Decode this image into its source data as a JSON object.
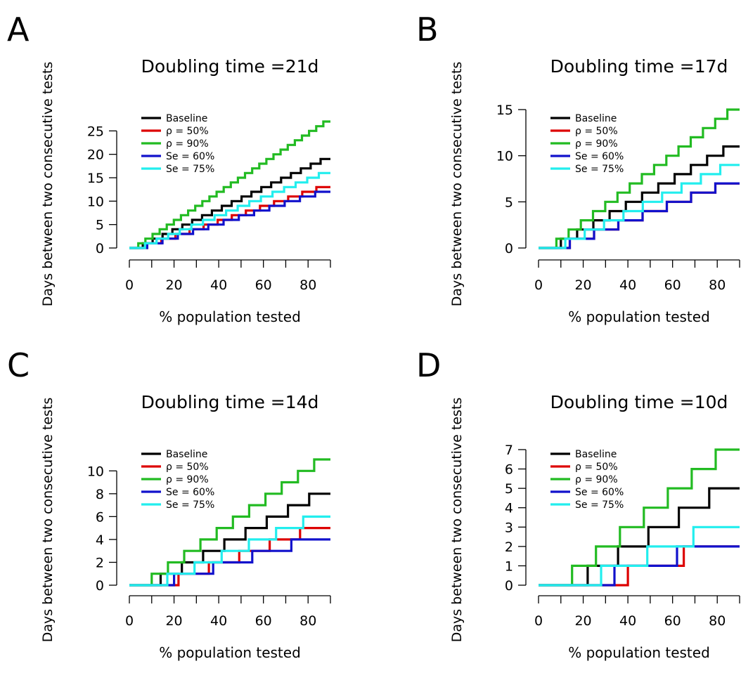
{
  "figure": {
    "xlabel": "% population tested",
    "ylabel": "Days between two consecutive tests"
  },
  "chart_data": [
    {
      "panel": "A",
      "type": "line",
      "title": "Doubling time =21d",
      "xlabel": "% population tested",
      "ylabel": "Days between two consecutive tests",
      "xlim": [
        0,
        90
      ],
      "ylim": [
        0,
        27
      ],
      "xticks": [
        0,
        20,
        40,
        60,
        80
      ],
      "yticks": [
        0,
        5,
        10,
        15,
        20,
        25
      ],
      "legend": "top-left",
      "series": [
        {
          "name": "Baseline",
          "color": "#000000",
          "end": 19,
          "start": 6
        },
        {
          "name": "ρ = 50%",
          "color": "#dd0000",
          "end": 13,
          "start": 8
        },
        {
          "name": "ρ = 90%",
          "color": "#22bb22",
          "end": 27,
          "start": 4
        },
        {
          "name": "Se = 60%",
          "color": "#1111cc",
          "end": 12,
          "start": 8
        },
        {
          "name": "Se = 75%",
          "color": "#22eeee",
          "end": 16,
          "start": 7
        }
      ]
    },
    {
      "panel": "B",
      "type": "line",
      "title": "Doubling time =17d",
      "xlabel": "% population tested",
      "ylabel": "Days between two consecutive tests",
      "xlim": [
        0,
        90
      ],
      "ylim": [
        0,
        15
      ],
      "xticks": [
        0,
        20,
        40,
        60,
        80
      ],
      "yticks": [
        0,
        5,
        10,
        15
      ],
      "legend": "top-left",
      "series": [
        {
          "name": "Baseline",
          "color": "#000000",
          "end": 11,
          "start": 10
        },
        {
          "name": "ρ = 50%",
          "color": "#dd0000",
          "end": 7,
          "start": 14
        },
        {
          "name": "ρ = 90%",
          "color": "#22bb22",
          "end": 15,
          "start": 8
        },
        {
          "name": "Se = 60%",
          "color": "#1111cc",
          "end": 7,
          "start": 14
        },
        {
          "name": "Se = 75%",
          "color": "#22eeee",
          "end": 9,
          "start": 12
        }
      ]
    },
    {
      "panel": "C",
      "type": "line",
      "title": "Doubling time =14d",
      "xlabel": "% population tested",
      "ylabel": "Days between two consecutive tests",
      "xlim": [
        0,
        90
      ],
      "ylim": [
        0,
        11
      ],
      "xticks": [
        0,
        20,
        40,
        60,
        80
      ],
      "yticks": [
        0,
        2,
        4,
        6,
        8,
        10
      ],
      "legend": "top-left",
      "series": [
        {
          "name": "Baseline",
          "color": "#000000",
          "end": 8,
          "start": 14
        },
        {
          "name": "ρ = 50%",
          "color": "#dd0000",
          "end": 5,
          "start": 22
        },
        {
          "name": "ρ = 90%",
          "color": "#22bb22",
          "end": 11,
          "start": 10
        },
        {
          "name": "Se = 60%",
          "color": "#1111cc",
          "end": 4,
          "start": 20
        },
        {
          "name": "Se = 75%",
          "color": "#22eeee",
          "end": 6,
          "start": 17
        }
      ]
    },
    {
      "panel": "D",
      "type": "line",
      "title": "Doubling time =10d",
      "xlabel": "% population tested",
      "ylabel": "Days between two consecutive tests",
      "xlim": [
        0,
        90
      ],
      "ylim": [
        0,
        7
      ],
      "xticks": [
        0,
        20,
        40,
        60,
        80
      ],
      "yticks": [
        0,
        1,
        2,
        3,
        4,
        5,
        6,
        7
      ],
      "legend": "top-left",
      "series": [
        {
          "name": "Baseline",
          "color": "#000000",
          "end": 5,
          "start": 22
        },
        {
          "name": "ρ = 50%",
          "color": "#dd0000",
          "end": 2,
          "start": 40
        },
        {
          "name": "ρ = 90%",
          "color": "#22bb22",
          "end": 7,
          "start": 15
        },
        {
          "name": "Se = 60%",
          "color": "#1111cc",
          "end": 2,
          "start": 34
        },
        {
          "name": "Se = 75%",
          "color": "#22eeee",
          "end": 3,
          "start": 28
        }
      ]
    }
  ]
}
